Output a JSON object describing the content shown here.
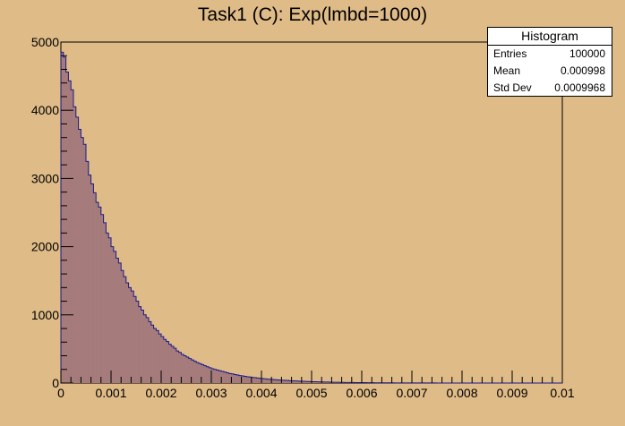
{
  "chart_data": {
    "type": "bar",
    "title": "Task1 (C): Exp(lmbd=1000)",
    "xlabel": "",
    "ylabel": "",
    "xlim": [
      0,
      0.01
    ],
    "ylim": [
      0,
      5000
    ],
    "bins": 200,
    "bin_width": 5e-05,
    "fill_color": "#a57b7b",
    "line_color": "#1a1a8c",
    "x_ticks": [
      "0",
      "0.001",
      "0.002",
      "0.003",
      "0.004",
      "0.005",
      "0.006",
      "0.007",
      "0.008",
      "0.009",
      "0.01"
    ],
    "x_tick_values": [
      0,
      0.001,
      0.002,
      0.003,
      0.004,
      0.005,
      0.006,
      0.007,
      0.008,
      0.009,
      0.01
    ],
    "y_ticks": [
      "0",
      "1000",
      "2000",
      "3000",
      "4000",
      "5000"
    ],
    "y_tick_values": [
      0,
      1000,
      2000,
      3000,
      4000,
      5000
    ],
    "values": [
      4850,
      4780,
      4560,
      4430,
      4300,
      4050,
      3900,
      3720,
      3600,
      3500,
      3250,
      3050,
      2920,
      2790,
      2650,
      2580,
      2470,
      2350,
      2200,
      2130,
      2000,
      1930,
      1830,
      1760,
      1650,
      1560,
      1470,
      1400,
      1350,
      1270,
      1200,
      1120,
      1070,
      1000,
      960,
      900,
      850,
      800,
      770,
      720,
      680,
      640,
      610,
      570,
      540,
      510,
      470,
      450,
      420,
      400,
      380,
      360,
      340,
      320,
      300,
      285,
      270,
      255,
      240,
      225,
      210,
      200,
      190,
      180,
      170,
      160,
      150,
      140,
      135,
      125,
      118,
      110,
      105,
      98,
      92,
      88,
      82,
      78,
      74,
      70,
      66,
      62,
      58,
      55,
      52,
      49,
      46,
      44,
      41,
      39,
      37,
      35,
      33,
      31,
      29,
      27,
      26,
      24,
      23,
      22,
      20,
      19,
      18,
      17,
      16,
      15,
      14,
      13,
      12,
      12,
      11,
      10,
      10,
      9,
      9,
      8,
      8,
      7,
      7,
      6,
      6,
      6,
      5,
      5,
      5,
      4,
      4,
      4,
      3,
      3,
      3,
      3,
      3,
      2,
      2,
      2,
      2,
      2,
      2,
      1,
      1,
      1,
      1,
      1,
      1,
      1,
      1,
      1,
      1,
      1,
      0,
      0,
      0,
      0,
      0,
      0,
      0,
      0,
      0,
      0,
      0,
      0,
      0,
      0,
      0,
      0,
      0,
      0,
      0,
      0,
      0,
      0,
      0,
      0,
      0,
      0,
      0,
      0,
      0,
      0,
      0,
      0,
      0,
      0,
      0,
      0,
      0,
      0,
      0,
      0,
      0,
      0,
      0,
      0,
      0,
      0,
      0,
      0,
      0,
      0
    ]
  },
  "stats_box": {
    "title": "Histogram",
    "entries_label": "Entries",
    "entries_value": "100000",
    "mean_label": "Mean",
    "mean_value": "0.000998",
    "std_label": "Std Dev",
    "std_value": "0.0009968"
  }
}
